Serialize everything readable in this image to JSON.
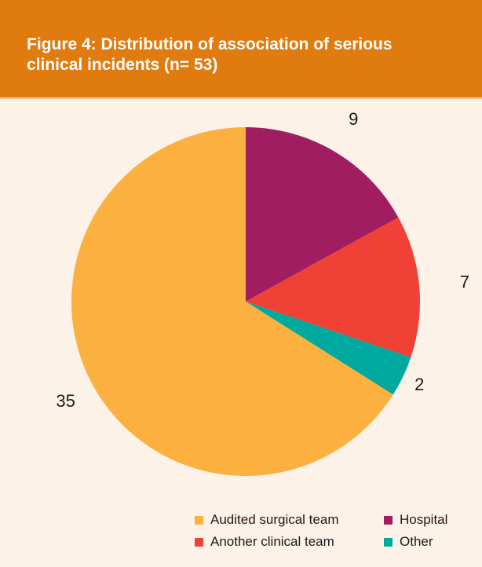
{
  "chart_data": {
    "type": "pie",
    "title": "Figure 4: Distribution of association of serious clinical incidents (n= 53)",
    "categories": [
      "Hospital",
      "Another clinical team",
      "Other",
      "Audited surgical team"
    ],
    "values": [
      9,
      7,
      2,
      35
    ],
    "colors": [
      "#a01d62",
      "#ef4136",
      "#00a99d",
      "#fbb040"
    ],
    "start_angle": "12 o'clock",
    "direction": "clockwise",
    "legend": {
      "placement": "bottom-right",
      "entries": [
        "Audited surgical team",
        "Hospital",
        "Another clinical team",
        "Other"
      ]
    }
  }
}
